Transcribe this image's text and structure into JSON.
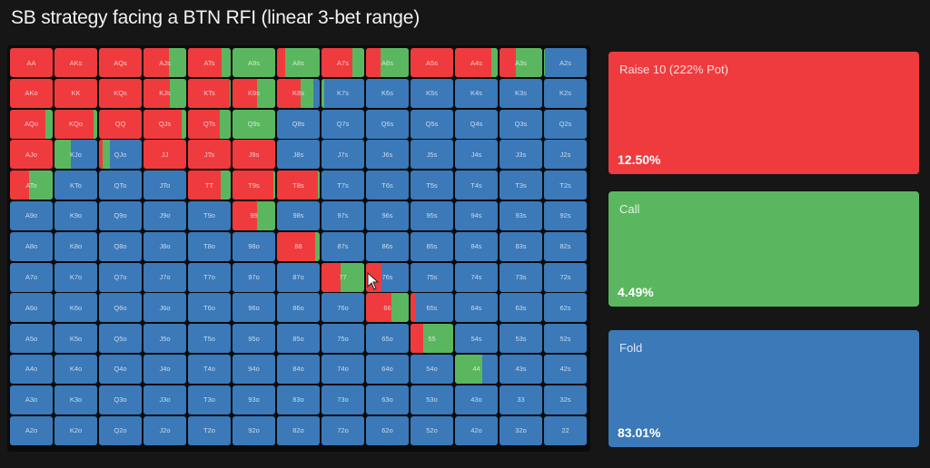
{
  "title": "SB strategy facing a BTN RFI (linear 3-bet range)",
  "colors": {
    "raise": "#ef3b3e",
    "call": "#5bb75f",
    "fold": "#3b79b9",
    "background": "#161616"
  },
  "actions": [
    {
      "label": "Raise 10 (222% Pot)",
      "percent": "12.50%",
      "color": "#ef3b3e"
    },
    {
      "label": "Call",
      "percent": "4.49%",
      "color": "#5bb75f"
    },
    {
      "label": "Fold",
      "percent": "83.01%",
      "color": "#3b79b9"
    }
  ],
  "chart_data": {
    "type": "heatmap",
    "title": "SB strategy facing a BTN RFI (linear 3-bet range)",
    "legend": [
      {
        "name": "Raise 10 (222% Pot)",
        "frequency": 12.5
      },
      {
        "name": "Call",
        "frequency": 4.49
      },
      {
        "name": "Fold",
        "frequency": 83.01
      }
    ],
    "ranks": [
      "A",
      "K",
      "Q",
      "J",
      "T",
      "9",
      "8",
      "7",
      "6",
      "5",
      "4",
      "3",
      "2"
    ],
    "note": "cells: [raise, call, fold] fractions; estimated from segment widths",
    "grid": [
      [
        [
          "AA",
          1,
          0,
          0
        ],
        [
          "AKs",
          1,
          0,
          0
        ],
        [
          "AQs",
          1,
          0,
          0
        ],
        [
          "AJs",
          0.6,
          0.4,
          0
        ],
        [
          "ATs",
          0.78,
          0.22,
          0
        ],
        [
          "A9s",
          0,
          1,
          0
        ],
        [
          "A8s",
          0.2,
          0.8,
          0
        ],
        [
          "A7s",
          0.72,
          0.28,
          0
        ],
        [
          "A6s",
          0.35,
          0.65,
          0
        ],
        [
          "A5s",
          1,
          0,
          0
        ],
        [
          "A4s",
          0.85,
          0.15,
          0
        ],
        [
          "A3s",
          0.38,
          0.62,
          0
        ],
        [
          "A2s",
          0,
          0.02,
          0.98
        ]
      ],
      [
        [
          "AKo",
          1,
          0,
          0
        ],
        [
          "KK",
          1,
          0,
          0
        ],
        [
          "KQs",
          1,
          0,
          0
        ],
        [
          "KJs",
          0.62,
          0.38,
          0
        ],
        [
          "KTs",
          0.98,
          0.02,
          0
        ],
        [
          "K9s",
          0.58,
          0.42,
          0
        ],
        [
          "K8s",
          0.55,
          0.3,
          0.15
        ],
        [
          "K7s",
          0,
          0.06,
          0.94
        ],
        [
          "K6s",
          0,
          0,
          1
        ],
        [
          "K5s",
          0,
          0,
          1
        ],
        [
          "K4s",
          0,
          0,
          1
        ],
        [
          "K3s",
          0,
          0,
          1
        ],
        [
          "K2s",
          0,
          0,
          1
        ]
      ],
      [
        [
          "AQo",
          0.82,
          0.18,
          0
        ],
        [
          "KQo",
          0.92,
          0.08,
          0
        ],
        [
          "QQ",
          1,
          0,
          0
        ],
        [
          "QJs",
          0.9,
          0.1,
          0
        ],
        [
          "QTs",
          0.75,
          0.25,
          0
        ],
        [
          "Q9s",
          0,
          1,
          0
        ],
        [
          "Q8s",
          0,
          0,
          1
        ],
        [
          "Q7s",
          0,
          0,
          1
        ],
        [
          "Q6s",
          0,
          0,
          1
        ],
        [
          "Q5s",
          0,
          0,
          1
        ],
        [
          "Q4s",
          0,
          0,
          1
        ],
        [
          "Q3s",
          0,
          0,
          1
        ],
        [
          "Q2s",
          0,
          0,
          1
        ]
      ],
      [
        [
          "AJo",
          1,
          0,
          0
        ],
        [
          "KJo",
          0,
          0.38,
          0.62
        ],
        [
          "QJo",
          0.08,
          0.18,
          0.74
        ],
        [
          "JJ",
          1,
          0,
          0
        ],
        [
          "JTs",
          1,
          0,
          0
        ],
        [
          "J9s",
          1,
          0,
          0
        ],
        [
          "J8s",
          0,
          0,
          1
        ],
        [
          "J7s",
          0,
          0,
          1
        ],
        [
          "J6s",
          0,
          0,
          1
        ],
        [
          "J5s",
          0,
          0,
          1
        ],
        [
          "J4s",
          0,
          0,
          1
        ],
        [
          "J3s",
          0,
          0,
          1
        ],
        [
          "J2s",
          0,
          0,
          1
        ]
      ],
      [
        [
          "ATo",
          0.45,
          0.55,
          0
        ],
        [
          "KTo",
          0,
          0,
          1
        ],
        [
          "QTo",
          0,
          0,
          1
        ],
        [
          "JTo",
          0,
          0,
          1
        ],
        [
          "TT",
          0.77,
          0.23,
          0
        ],
        [
          "T9s",
          0.96,
          0.04,
          0
        ],
        [
          "T8s",
          0.95,
          0.05,
          0
        ],
        [
          "T7s",
          0,
          0,
          1
        ],
        [
          "T6s",
          0,
          0,
          1
        ],
        [
          "T5s",
          0,
          0,
          1
        ],
        [
          "T4s",
          0,
          0,
          1
        ],
        [
          "T3s",
          0,
          0,
          1
        ],
        [
          "T2s",
          0,
          0,
          1
        ]
      ],
      [
        [
          "A9o",
          0,
          0,
          1
        ],
        [
          "K9o",
          0,
          0,
          1
        ],
        [
          "Q9o",
          0,
          0,
          1
        ],
        [
          "J9o",
          0,
          0,
          1
        ],
        [
          "T9o",
          0,
          0,
          1
        ],
        [
          "99",
          0.58,
          0.42,
          0
        ],
        [
          "98s",
          0,
          0,
          1
        ],
        [
          "97s",
          0,
          0,
          1
        ],
        [
          "96s",
          0,
          0,
          1
        ],
        [
          "95s",
          0,
          0,
          1
        ],
        [
          "94s",
          0,
          0,
          1
        ],
        [
          "93s",
          0,
          0,
          1
        ],
        [
          "92s",
          0,
          0,
          1
        ]
      ],
      [
        [
          "A8o",
          0,
          0,
          1
        ],
        [
          "K8o",
          0,
          0,
          1
        ],
        [
          "Q8o",
          0,
          0,
          1
        ],
        [
          "J8o",
          0,
          0,
          1
        ],
        [
          "T8o",
          0,
          0,
          1
        ],
        [
          "98o",
          0,
          0,
          1
        ],
        [
          "88",
          0.9,
          0.1,
          0
        ],
        [
          "87s",
          0,
          0,
          1
        ],
        [
          "86s",
          0,
          0,
          1
        ],
        [
          "85s",
          0,
          0,
          1
        ],
        [
          "84s",
          0,
          0,
          1
        ],
        [
          "83s",
          0,
          0,
          1
        ],
        [
          "82s",
          0,
          0,
          1
        ]
      ],
      [
        [
          "A7o",
          0,
          0,
          1
        ],
        [
          "K7o",
          0,
          0,
          1
        ],
        [
          "Q7o",
          0,
          0,
          1
        ],
        [
          "J7o",
          0,
          0,
          1
        ],
        [
          "T7o",
          0,
          0,
          1
        ],
        [
          "97o",
          0,
          0,
          1
        ],
        [
          "87o",
          0,
          0,
          1
        ],
        [
          "77",
          0.44,
          0.56,
          0
        ],
        [
          "76s",
          0.36,
          0,
          0.64
        ],
        [
          "75s",
          0,
          0,
          1
        ],
        [
          "74s",
          0,
          0,
          1
        ],
        [
          "73s",
          0,
          0,
          1
        ],
        [
          "72s",
          0,
          0,
          1
        ]
      ],
      [
        [
          "A6o",
          0,
          0,
          1
        ],
        [
          "K6o",
          0,
          0,
          1
        ],
        [
          "Q6o",
          0,
          0,
          1
        ],
        [
          "J6o",
          0,
          0,
          1
        ],
        [
          "T6o",
          0,
          0,
          1
        ],
        [
          "96o",
          0,
          0,
          1
        ],
        [
          "86o",
          0,
          0,
          1
        ],
        [
          "76o",
          0,
          0,
          1
        ],
        [
          "66",
          0.6,
          0.4,
          0
        ],
        [
          "65s",
          0.13,
          0,
          0.87
        ],
        [
          "64s",
          0,
          0,
          1
        ],
        [
          "63s",
          0,
          0,
          1
        ],
        [
          "62s",
          0,
          0,
          1
        ]
      ],
      [
        [
          "A5o",
          0,
          0,
          1
        ],
        [
          "K5o",
          0,
          0,
          1
        ],
        [
          "Q5o",
          0,
          0,
          1
        ],
        [
          "J5o",
          0,
          0,
          1
        ],
        [
          "T5o",
          0,
          0,
          1
        ],
        [
          "95o",
          0,
          0,
          1
        ],
        [
          "85o",
          0,
          0,
          1
        ],
        [
          "75o",
          0,
          0,
          1
        ],
        [
          "65o",
          0,
          0,
          1
        ],
        [
          "55",
          0.3,
          0.7,
          0
        ],
        [
          "54s",
          0,
          0,
          1
        ],
        [
          "53s",
          0,
          0,
          1
        ],
        [
          "52s",
          0,
          0,
          1
        ]
      ],
      [
        [
          "A4o",
          0,
          0,
          1
        ],
        [
          "K4o",
          0,
          0,
          1
        ],
        [
          "Q4o",
          0,
          0,
          1
        ],
        [
          "J4o",
          0,
          0,
          1
        ],
        [
          "T4o",
          0,
          0,
          1
        ],
        [
          "94o",
          0,
          0,
          1
        ],
        [
          "84o",
          0,
          0,
          1
        ],
        [
          "74o",
          0,
          0,
          1
        ],
        [
          "64o",
          0,
          0,
          1
        ],
        [
          "54o",
          0,
          0,
          1
        ],
        [
          "44",
          0,
          0.63,
          0.37
        ],
        [
          "43s",
          0,
          0,
          1
        ],
        [
          "42s",
          0,
          0,
          1
        ]
      ],
      [
        [
          "A3o",
          0,
          0,
          1
        ],
        [
          "K3o",
          0,
          0,
          1
        ],
        [
          "Q3o",
          0,
          0,
          1
        ],
        [
          "J3o",
          0,
          0,
          1
        ],
        [
          "T3o",
          0,
          0,
          1
        ],
        [
          "93o",
          0,
          0,
          1
        ],
        [
          "83o",
          0,
          0,
          1
        ],
        [
          "73o",
          0,
          0,
          1
        ],
        [
          "63o",
          0,
          0,
          1
        ],
        [
          "53o",
          0,
          0,
          1
        ],
        [
          "43o",
          0,
          0,
          1
        ],
        [
          "33",
          0,
          0,
          1
        ],
        [
          "32s",
          0,
          0,
          1
        ]
      ],
      [
        [
          "A2o",
          0,
          0,
          1
        ],
        [
          "K2o",
          0,
          0,
          1
        ],
        [
          "Q2o",
          0,
          0,
          1
        ],
        [
          "J2o",
          0,
          0,
          1
        ],
        [
          "T2o",
          0,
          0,
          1
        ],
        [
          "92o",
          0,
          0,
          1
        ],
        [
          "82o",
          0,
          0,
          1
        ],
        [
          "72o",
          0,
          0,
          1
        ],
        [
          "62o",
          0,
          0,
          1
        ],
        [
          "52o",
          0,
          0,
          1
        ],
        [
          "42o",
          0,
          0,
          1
        ],
        [
          "32o",
          0,
          0,
          1
        ],
        [
          "22",
          0,
          0,
          1
        ]
      ]
    ]
  }
}
